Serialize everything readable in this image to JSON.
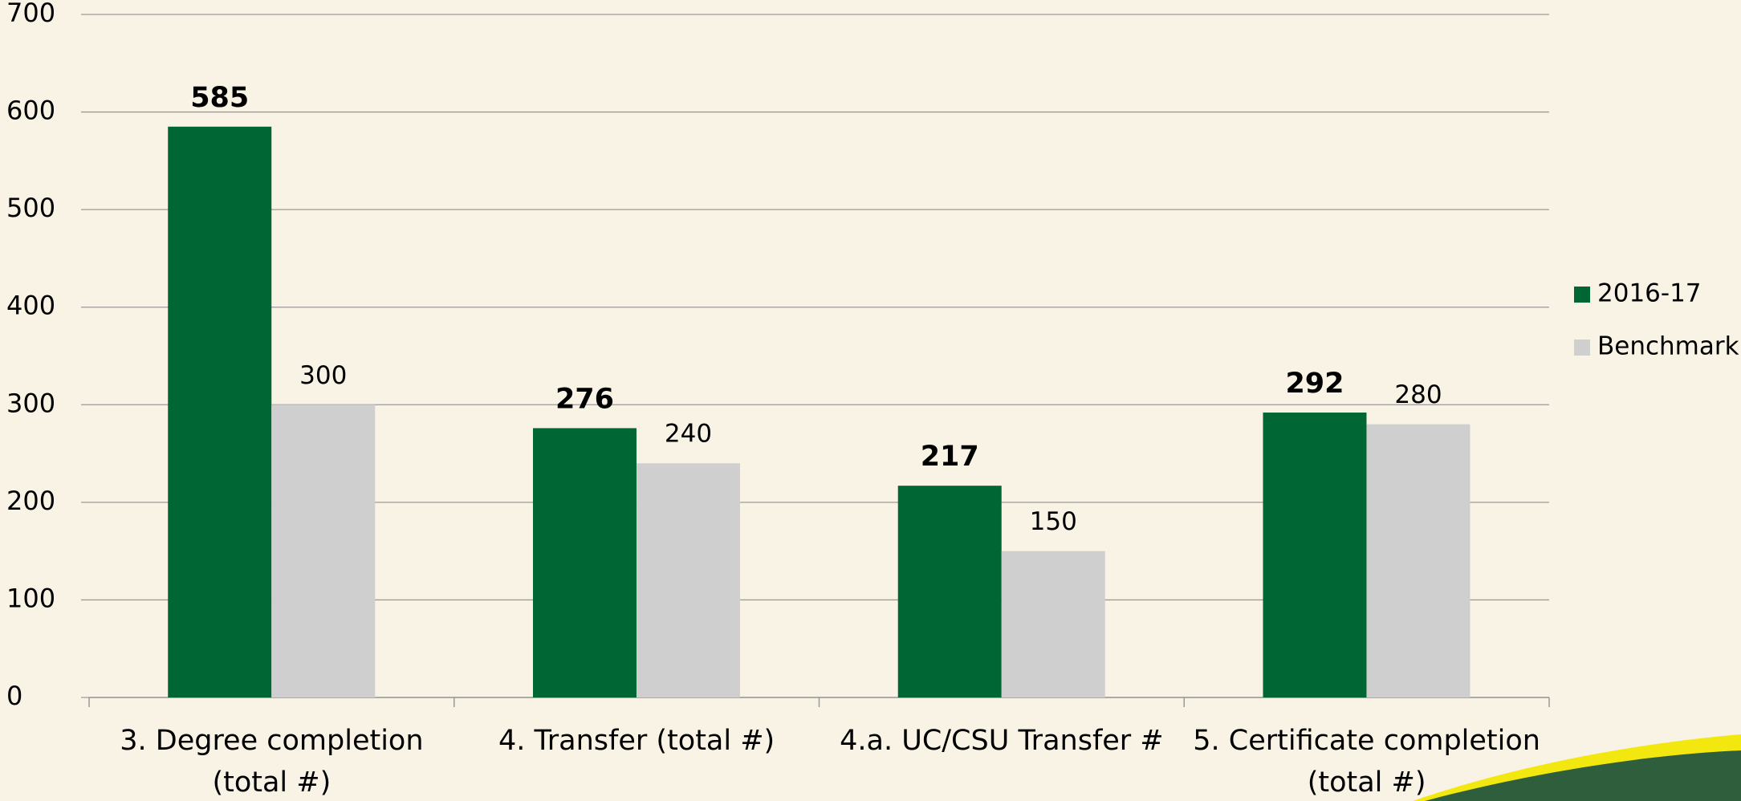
{
  "chart_data": {
    "type": "bar",
    "categories": [
      "3. Degree completion\n(total #)",
      "4. Transfer (total #)",
      "4.a. UC/CSU Transfer #",
      "5. Certificate completion\n(total #)"
    ],
    "series": [
      {
        "name": "2016-17",
        "color": "#006633",
        "values": [
          585,
          276,
          217,
          292
        ]
      },
      {
        "name": "Benchmark",
        "color": "#d0cfcf",
        "values": [
          300,
          240,
          150,
          280
        ]
      }
    ],
    "ylim": [
      0,
      700
    ],
    "yticks": [
      0,
      100,
      200,
      300,
      400,
      500,
      600,
      700
    ],
    "grid": true,
    "legend": "right"
  }
}
